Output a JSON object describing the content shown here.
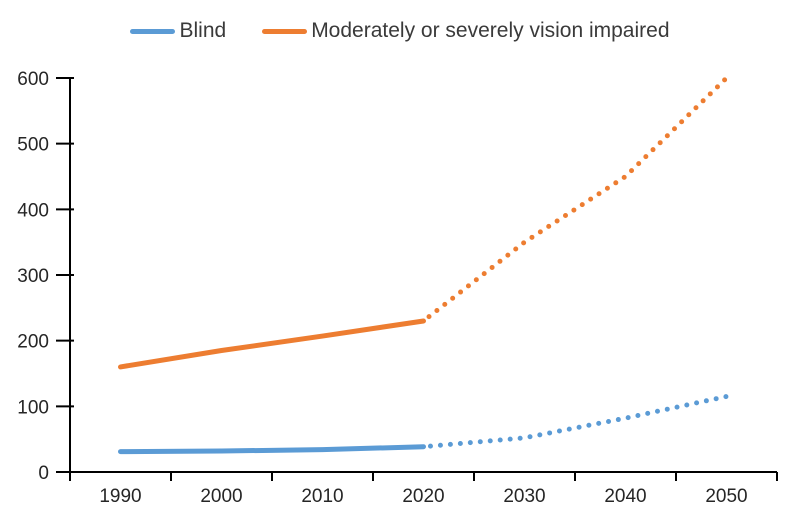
{
  "chart_data": {
    "type": "line",
    "title": "",
    "xlabel": "",
    "ylabel": "",
    "categories": [
      "1990",
      "2000",
      "2010",
      "2020",
      "2030",
      "2040",
      "2050"
    ],
    "series": [
      {
        "name": "Blind",
        "color": "#5B9BD5",
        "values": [
          31,
          32,
          34,
          38.5,
          52,
          82,
          115
        ],
        "dash_from_category": "2020",
        "dash_style": "dotted"
      },
      {
        "name": "Moderately or severely vision impaired",
        "color": "#ED7D31",
        "values": [
          160,
          185,
          207,
          230,
          350,
          450,
          600
        ],
        "dash_from_category": "2020",
        "dash_style": "dotted"
      }
    ],
    "ylim": [
      0,
      600
    ],
    "y_ticks": [
      "0",
      "100",
      "200",
      "300",
      "400",
      "500",
      "600"
    ],
    "grid": false,
    "legend_position": "top"
  },
  "legend": {
    "items": [
      {
        "label": "Blind",
        "color": "#5B9BD5"
      },
      {
        "label": "Moderately or severely vision impaired",
        "color": "#ED7D31"
      }
    ]
  },
  "axes": {
    "axis_color": "#000000",
    "tick_label_color": "#262626"
  }
}
